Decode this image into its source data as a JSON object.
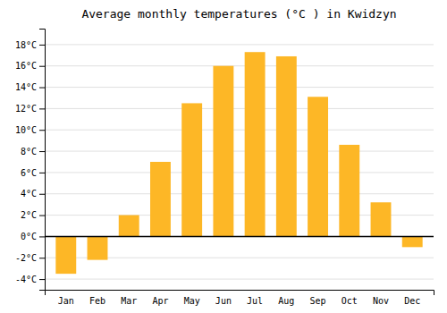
{
  "chart_data": {
    "type": "bar",
    "title": "Average monthly temperatures (°C ) in Kwidzyn",
    "categories": [
      "Jan",
      "Feb",
      "Mar",
      "Apr",
      "May",
      "Jun",
      "Jul",
      "Aug",
      "Sep",
      "Oct",
      "Nov",
      "Dec"
    ],
    "values": [
      -3.5,
      -2.2,
      2.0,
      7.0,
      12.5,
      16.0,
      17.3,
      16.9,
      13.1,
      8.6,
      3.2,
      -1.0
    ],
    "color": "#FDB726",
    "ylim": [
      -5,
      19.5
    ],
    "yticks": [
      {
        "value": -4,
        "label": "-4°C"
      },
      {
        "value": -2,
        "label": "-2°C"
      },
      {
        "value": 0,
        "label": "0°C"
      },
      {
        "value": 2,
        "label": "2°C"
      },
      {
        "value": 4,
        "label": "4°C"
      },
      {
        "value": 6,
        "label": "6°C"
      },
      {
        "value": 8,
        "label": "8°C"
      },
      {
        "value": 10,
        "label": "10°C"
      },
      {
        "value": 12,
        "label": "12°C"
      },
      {
        "value": 14,
        "label": "14°C"
      },
      {
        "value": 16,
        "label": "16°C"
      },
      {
        "value": 18,
        "label": "18°C"
      }
    ],
    "grid": true
  }
}
